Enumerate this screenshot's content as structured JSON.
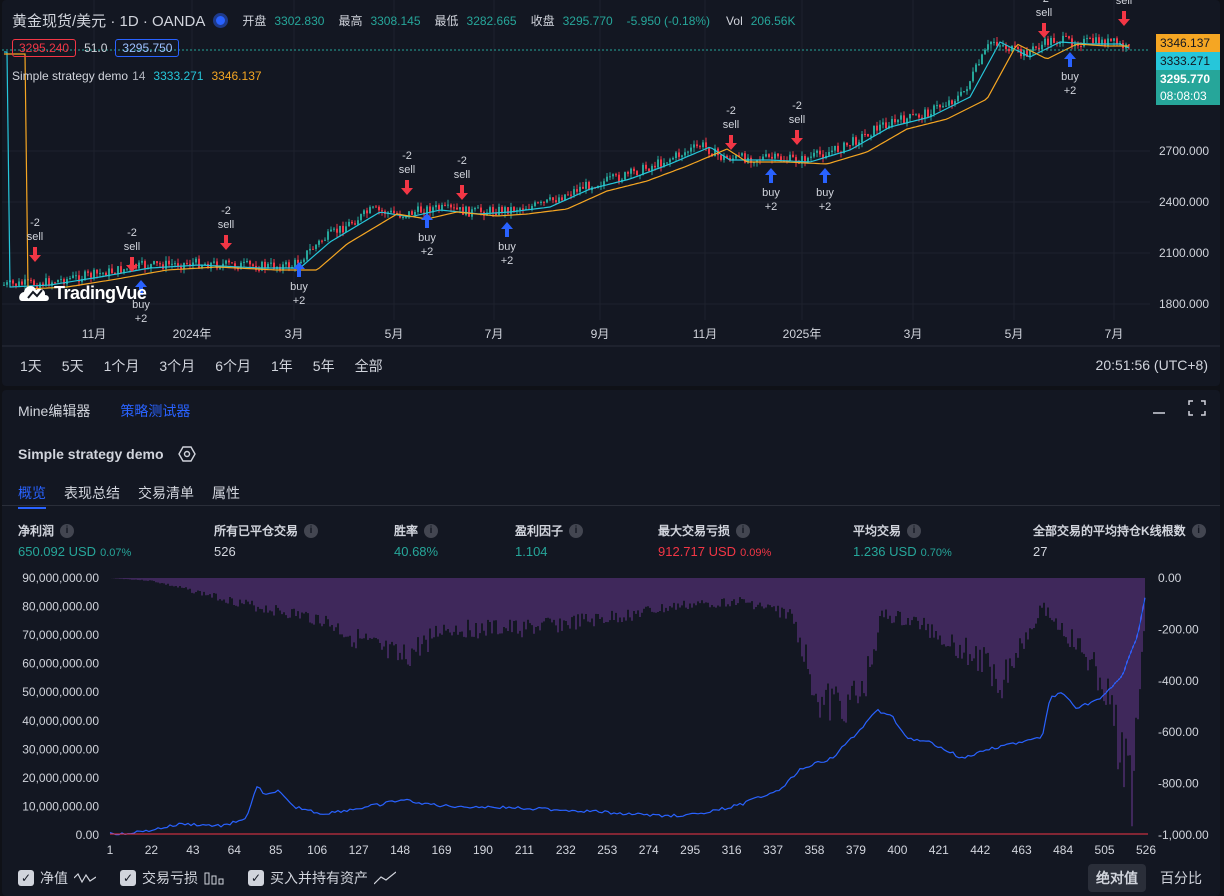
{
  "symbol": {
    "title": "黄金现货/美元 · 1D · OANDA",
    "open_label": "开盘",
    "open": "3302.830",
    "high_label": "最高",
    "high": "3308.145",
    "low_label": "最低",
    "low": "3282.665",
    "close_label": "收盘",
    "close": "3295.770",
    "change": "-5.950 (-0.18%)",
    "vol_label": "Vol",
    "vol": "206.56K"
  },
  "badges": {
    "sell_price": "3295.240",
    "spread": "51.0",
    "buy_price": "3295.750"
  },
  "strategy_legend": {
    "name": "Simple strategy demo",
    "length": "14",
    "v1": "3333.271",
    "v2": "3346.137"
  },
  "price_tags": {
    "orange": "3346.137",
    "cyan": "3333.271",
    "last": "3295.770",
    "countdown": "08:08:03"
  },
  "price_axis": [
    "2700.000",
    "2400.000",
    "2100.000",
    "1800.000"
  ],
  "time_axis": [
    "11月",
    "2024年",
    "3月",
    "5月",
    "7月",
    "9月",
    "11月",
    "2025年",
    "3月",
    "5月",
    "7月"
  ],
  "watermark": "TradingVue",
  "signals": [
    {
      "type": "sell",
      "qty": "-2",
      "label": "sell"
    },
    {
      "type": "buy",
      "qty": "+2",
      "label": "buy"
    }
  ],
  "ranges": [
    "1天",
    "5天",
    "1个月",
    "3个月",
    "6个月",
    "1年",
    "5年",
    "全部"
  ],
  "clock": "20:51:56 (UTC+8)",
  "bottom_tabs": [
    "Mine编辑器",
    "策略测试器"
  ],
  "strategy_title": "Simple strategy demo",
  "sub_tabs": [
    "概览",
    "表现总结",
    "交易清单",
    "属性"
  ],
  "stats": [
    {
      "label": "净利润",
      "value": "650.092 USD",
      "pct": "0.07%",
      "color": "green"
    },
    {
      "label": "所有已平仓交易",
      "value": "526",
      "pct": "",
      "color": "white"
    },
    {
      "label": "胜率",
      "value": "40.68%",
      "pct": "",
      "color": "green"
    },
    {
      "label": "盈利因子",
      "value": "1.104",
      "pct": "",
      "color": "green"
    },
    {
      "label": "最大交易亏损",
      "value": "912.717 USD",
      "pct": "0.09%",
      "color": "red"
    },
    {
      "label": "平均交易",
      "value": "1.236 USD",
      "pct": "0.70%",
      "color": "green"
    },
    {
      "label": "全部交易的平均持仓K线根数",
      "value": "27",
      "pct": "",
      "color": "white"
    }
  ],
  "equity_left_axis": [
    "90,000,000.00",
    "80,000,000.00",
    "70,000,000.00",
    "60,000,000.00",
    "50,000,000.00",
    "40,000,000.00",
    "30,000,000.00",
    "20,000,000.00",
    "10,000,000.00",
    "0.00"
  ],
  "equity_right_axis": [
    "0.00",
    "-200.00",
    "-400.00",
    "-600.00",
    "-800.00",
    "-1,000.00"
  ],
  "equity_x_axis": [
    "1",
    "22",
    "43",
    "64",
    "85",
    "106",
    "127",
    "148",
    "169",
    "190",
    "211",
    "232",
    "253",
    "274",
    "295",
    "316",
    "337",
    "358",
    "379",
    "400",
    "421",
    "442",
    "463",
    "484",
    "505",
    "526"
  ],
  "footer": {
    "equity": "净值",
    "drawdown": "交易亏损",
    "buy_hold": "买入并持有资产",
    "abs": "绝对值",
    "pct": "百分比"
  },
  "colors": {
    "up": "#26a69a",
    "down": "#f23645",
    "buy": "#2962ff",
    "ma1": "#26c6da",
    "ma2": "#f5a623",
    "drawdown": "#7b3fa8",
    "equity": "#2962ff"
  }
}
